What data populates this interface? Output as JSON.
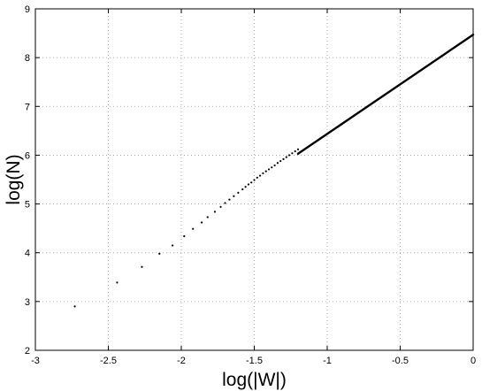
{
  "chart_data": {
    "type": "scatter",
    "title": "",
    "xlabel": "log(|W|)",
    "ylabel": "log(N)",
    "xlim": [
      -3,
      0
    ],
    "ylim": [
      2,
      9
    ],
    "xticks": [
      -3,
      -2.5,
      -2,
      -1.5,
      -1,
      -0.5,
      0
    ],
    "yticks": [
      2,
      3,
      4,
      5,
      6,
      7,
      8,
      9
    ],
    "xtick_labels": [
      "-3",
      "-2.5",
      "-2",
      "-1.5",
      "-1",
      "-0.5",
      "0"
    ],
    "ytick_labels": [
      "2",
      "3",
      "4",
      "5",
      "6",
      "7",
      "8",
      "9"
    ],
    "grid": true,
    "legend": "none",
    "marker_color": "#000000",
    "series": [
      {
        "x": [
          -2.73,
          -2.44,
          -2.27,
          -2.15,
          -2.06,
          -1.98,
          -1.92,
          -1.86,
          -1.82,
          -1.77,
          -1.73,
          -1.7,
          -1.67,
          -1.64,
          -1.61,
          -1.58,
          -1.56,
          -1.54,
          -1.52,
          -1.5,
          -1.48,
          -1.46,
          -1.44,
          -1.42,
          -1.4,
          -1.38,
          -1.36,
          -1.34,
          -1.32,
          -1.3,
          -1.28,
          -1.26,
          -1.24,
          -1.22,
          -1.2
        ],
        "y": [
          2.9,
          3.39,
          3.71,
          3.98,
          4.15,
          4.34,
          4.49,
          4.62,
          4.73,
          4.84,
          4.94,
          5.02,
          5.09,
          5.16,
          5.23,
          5.3,
          5.35,
          5.4,
          5.44,
          5.49,
          5.54,
          5.58,
          5.63,
          5.67,
          5.71,
          5.75,
          5.79,
          5.84,
          5.88,
          5.92,
          5.96,
          6.0,
          6.04,
          6.08,
          6.12
        ]
      }
    ],
    "dense_segment": {
      "x_start": -1.2,
      "x_end": 0,
      "y_start": 6.03,
      "y_end": 8.47
    }
  }
}
